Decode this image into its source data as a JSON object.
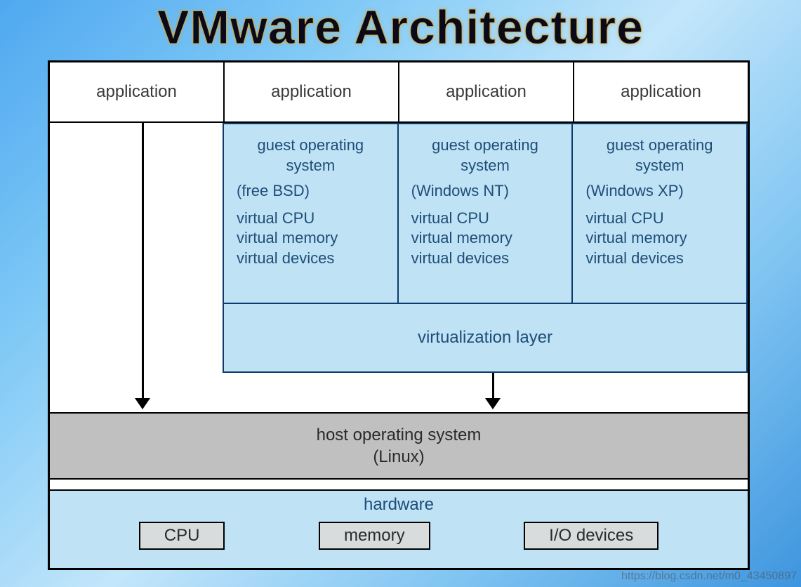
{
  "title": "VMware Architecture",
  "colors": {
    "border": "#000000",
    "tinted_box": "#bfe3f4",
    "tinted_border": "#0d3b6e",
    "tinted_text": "#1e4d7a",
    "host_bg": "#c0c0c0",
    "hw_btn_bg": "#d8dcdc",
    "page_bg_gradient": [
      "#4fa8f0",
      "#7fc9f6",
      "#c3e6fa",
      "#7fc4f2",
      "#3e95de"
    ],
    "title_stroke": "#caa84a"
  },
  "fonts": {
    "title_size": 68,
    "body_size": 24,
    "guest_size": 22
  },
  "apps": [
    "application",
    "application",
    "application",
    "application"
  ],
  "guests": [
    {
      "title_line1": "guest operating",
      "title_line2": "system",
      "subtitle": "(free BSD)",
      "line1": "virtual CPU",
      "line2": "virtual memory",
      "line3": "virtual devices"
    },
    {
      "title_line1": "guest operating",
      "title_line2": "system",
      "subtitle": "(Windows NT)",
      "line1": "virtual CPU",
      "line2": "virtual memory",
      "line3": "virtual devices"
    },
    {
      "title_line1": "guest operating",
      "title_line2": "system",
      "subtitle": "(Windows XP)",
      "line1": "virtual CPU",
      "line2": "virtual memory",
      "line3": "virtual devices"
    }
  ],
  "virtualization_layer": "virtualization layer",
  "host_os": {
    "line1": "host operating system",
    "line2": "(Linux)"
  },
  "hardware": {
    "label": "hardware",
    "items": [
      "CPU",
      "memory",
      "I/O devices"
    ]
  },
  "watermark": "https://blog.csdn.net/m0_43450897"
}
